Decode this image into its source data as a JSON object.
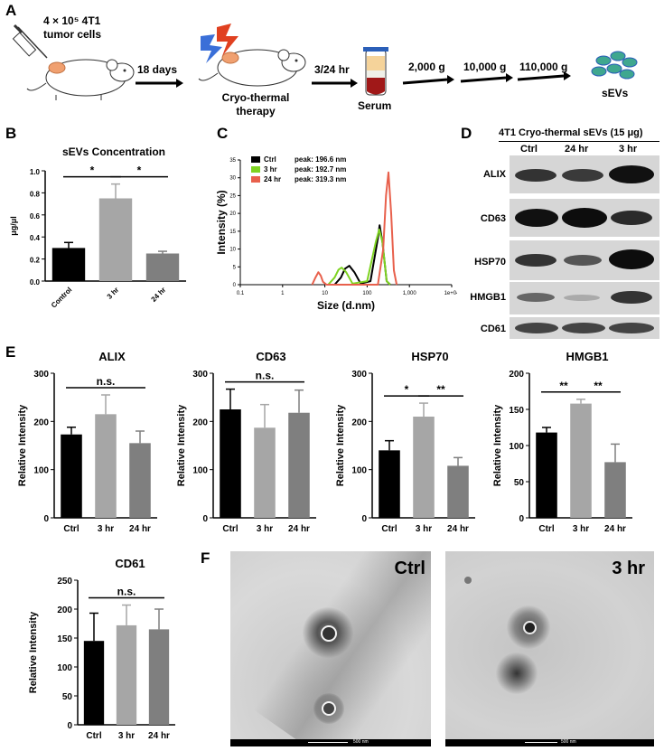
{
  "panels": {
    "a": "A",
    "b": "B",
    "c": "C",
    "d": "D",
    "e": "E",
    "f": "F"
  },
  "schematic": {
    "cells_line1": "4 × 10⁵ 4T1",
    "cells_line2": "tumor cells",
    "days": "18 days",
    "therapy_line1": "Cryo-thermal",
    "therapy_line2": "therapy",
    "time": "3/24 hr",
    "serum": "Serum",
    "spin1": "2,000 g",
    "spin2": "10,000 g",
    "spin3": "110,000 g",
    "product": "sEVs"
  },
  "chart_data": [
    {
      "id": "B",
      "type": "bar",
      "title": "sEVs Concentration",
      "ylabel": "μg/μl",
      "categories": [
        "Control",
        "3 hr",
        "24 hr"
      ],
      "values": [
        0.3,
        0.75,
        0.25
      ],
      "errors": [
        0.05,
        0.13,
        0.02
      ],
      "ylim": [
        0.0,
        1.0
      ],
      "yticks": [
        "0.0",
        "0.2",
        "0.4",
        "0.6",
        "0.8",
        "1.0"
      ],
      "colors": [
        "#000000",
        "#a6a6a6",
        "#7f7f7f"
      ],
      "significance": [
        {
          "from": 0,
          "to": 1,
          "label": "*"
        },
        {
          "from": 1,
          "to": 2,
          "label": "*"
        }
      ]
    },
    {
      "id": "C",
      "type": "line",
      "xscale": "log",
      "xlabel": "Size (d.nm)",
      "ylabel": "Intensity (%)",
      "xticks": [
        "0.1",
        "1",
        "10",
        "100",
        "1,000",
        "1e+04"
      ],
      "yticks": [
        "0",
        "5",
        "10",
        "15",
        "20",
        "25",
        "30",
        "35"
      ],
      "ylim": [
        0,
        35
      ],
      "series": [
        {
          "name": "Ctrl",
          "peak": "peak: 196.6 nm",
          "color": "#000000",
          "x": [
            17,
            24,
            30,
            38,
            50,
            70,
            120,
            180,
            197,
            230,
            290,
            350
          ],
          "y": [
            0,
            2,
            4.5,
            5.3,
            3.5,
            0.3,
            1,
            13,
            16.7,
            12,
            1,
            0
          ]
        },
        {
          "name": "3 hr",
          "peak": "peak: 192.7 nm",
          "color": "#7ed321",
          "x": [
            12,
            17,
            21,
            25,
            32,
            45,
            100,
            160,
            193,
            230,
            290,
            350
          ],
          "y": [
            0,
            2,
            4.2,
            4.8,
            3.5,
            0.3,
            1,
            12,
            15.5,
            12,
            1,
            0
          ]
        },
        {
          "name": "24 hr",
          "peak": "peak: 319.3 nm",
          "color": "#e8604c",
          "x": [
            5,
            6,
            7,
            8,
            9,
            11,
            180,
            240,
            280,
            319,
            370,
            430,
            500
          ],
          "y": [
            0,
            2,
            3.5,
            2.5,
            0.8,
            0,
            0,
            10,
            25,
            31.5,
            20,
            4,
            0
          ]
        }
      ]
    },
    {
      "id": "E-ALIX",
      "type": "bar",
      "title": "ALIX",
      "ylabel": "Relative Intensity",
      "categories": [
        "Ctrl",
        "3 hr",
        "24 hr"
      ],
      "values": [
        173,
        215,
        155
      ],
      "errors": [
        15,
        40,
        25
      ],
      "ylim": [
        0,
        300
      ],
      "yticks": [
        "0",
        "100",
        "200",
        "300"
      ],
      "colors": [
        "#000000",
        "#a6a6a6",
        "#7f7f7f"
      ],
      "significance": [
        {
          "from": 0,
          "to": 2,
          "label": "n.s."
        }
      ]
    },
    {
      "id": "E-CD63",
      "type": "bar",
      "title": "CD63",
      "ylabel": "Relative Intensity",
      "categories": [
        "Ctrl",
        "3 hr",
        "24 hr"
      ],
      "values": [
        225,
        187,
        218
      ],
      "errors": [
        42,
        48,
        47
      ],
      "ylim": [
        0,
        300
      ],
      "yticks": [
        "0",
        "100",
        "200",
        "300"
      ],
      "colors": [
        "#000000",
        "#a6a6a6",
        "#7f7f7f"
      ],
      "significance": [
        {
          "from": 0,
          "to": 2,
          "label": "n.s."
        }
      ]
    },
    {
      "id": "E-HSP70",
      "type": "bar",
      "title": "HSP70",
      "ylabel": "Relative Intensity",
      "categories": [
        "Ctrl",
        "3 hr",
        "24 hr"
      ],
      "values": [
        140,
        210,
        108
      ],
      "errors": [
        20,
        28,
        17
      ],
      "ylim": [
        0,
        300
      ],
      "yticks": [
        "0",
        "100",
        "200",
        "300"
      ],
      "colors": [
        "#000000",
        "#a6a6a6",
        "#7f7f7f"
      ],
      "significance": [
        {
          "from": 0,
          "to": 1,
          "label": "*"
        },
        {
          "from": 1,
          "to": 2,
          "label": "**"
        }
      ]
    },
    {
      "id": "E-HMGB1",
      "type": "bar",
      "title": "HMGB1",
      "ylabel": "Relative Intensity",
      "categories": [
        "Ctrl",
        "3 hr",
        "24 hr"
      ],
      "values": [
        118,
        158,
        77
      ],
      "errors": [
        7,
        6,
        25
      ],
      "ylim": [
        0,
        200
      ],
      "yticks": [
        "0",
        "50",
        "100",
        "150",
        "200"
      ],
      "colors": [
        "#000000",
        "#a6a6a6",
        "#7f7f7f"
      ],
      "significance": [
        {
          "from": 0,
          "to": 1,
          "label": "**"
        },
        {
          "from": 1,
          "to": 2,
          "label": "**"
        }
      ]
    },
    {
      "id": "E-CD61",
      "type": "bar",
      "title": "CD61",
      "ylabel": "Relative Intensity",
      "categories": [
        "Ctrl",
        "3 hr",
        "24 hr"
      ],
      "values": [
        145,
        172,
        165
      ],
      "errors": [
        48,
        35,
        35
      ],
      "ylim": [
        0,
        250
      ],
      "yticks": [
        "0",
        "50",
        "100",
        "150",
        "200",
        "250"
      ],
      "colors": [
        "#000000",
        "#a6a6a6",
        "#7f7f7f"
      ],
      "significance": [
        {
          "from": 0,
          "to": 2,
          "label": "n.s."
        }
      ]
    }
  ],
  "western": {
    "title": "4T1 Cryo-thermal sEVs (15 μg)",
    "lanes": [
      "Ctrl",
      "24 hr",
      "3 hr"
    ],
    "rows": [
      "ALIX",
      "CD63",
      "HSP70",
      "HMGB1",
      "CD61"
    ]
  },
  "tem": {
    "left_label": "Ctrl",
    "right_label": "3 hr",
    "scale_left": "500 nm",
    "scale_right": "500 nm"
  }
}
